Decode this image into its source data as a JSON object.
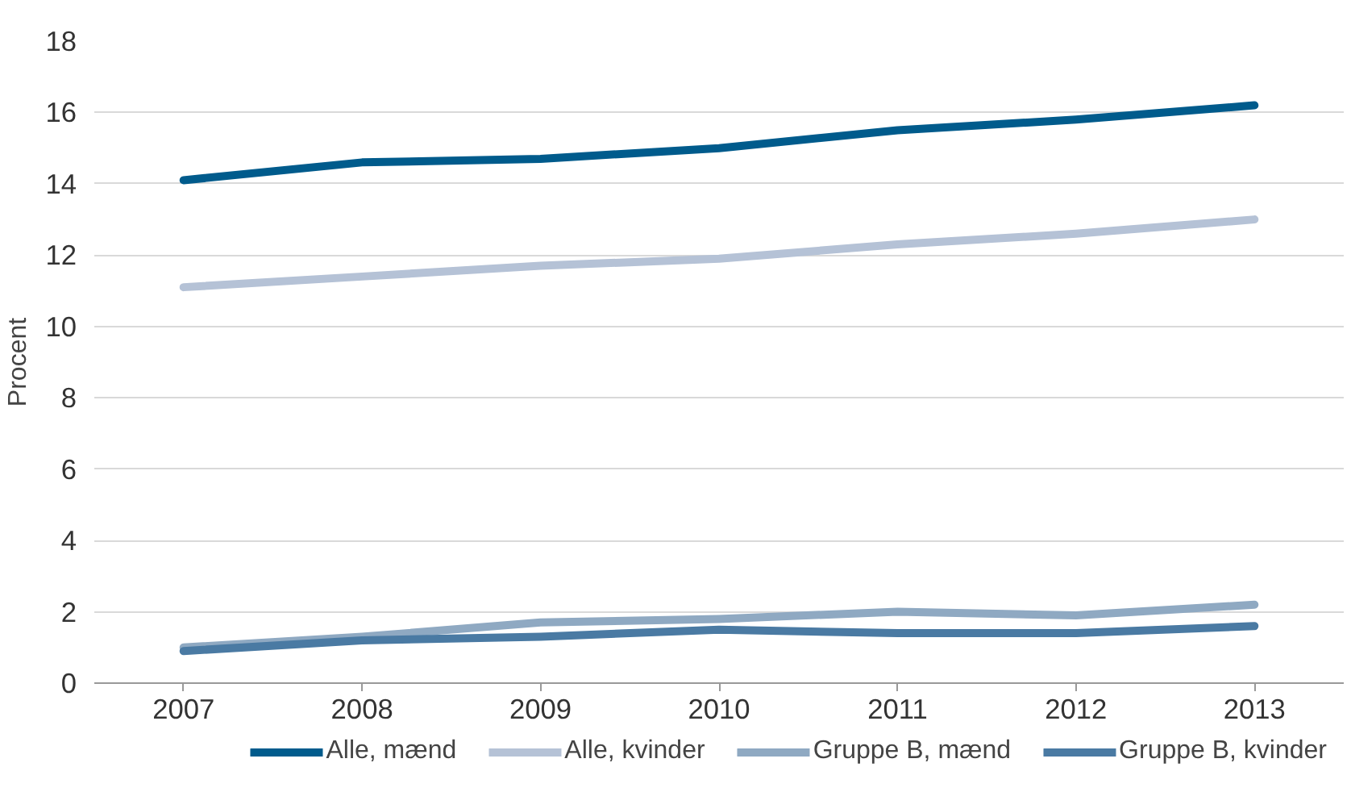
{
  "chart_data": {
    "type": "line",
    "ylabel": "Procent",
    "categories": [
      "2007",
      "2008",
      "2009",
      "2010",
      "2011",
      "2012",
      "2013"
    ],
    "series": [
      {
        "name": "Alle, mænd",
        "color": "#005b8c",
        "values": [
          14.1,
          14.6,
          14.7,
          15.0,
          15.5,
          15.8,
          16.2
        ]
      },
      {
        "name": "Alle, kvinder",
        "color": "#b5c2d6",
        "values": [
          11.1,
          11.4,
          11.7,
          11.9,
          12.3,
          12.6,
          13.0
        ]
      },
      {
        "name": "Gruppe B, mænd",
        "color": "#8fa9c2",
        "values": [
          1.0,
          1.3,
          1.7,
          1.8,
          2.0,
          1.9,
          2.2
        ]
      },
      {
        "name": "Gruppe B, kvinder",
        "color": "#4a7aa3",
        "values": [
          0.9,
          1.2,
          1.3,
          1.5,
          1.4,
          1.4,
          1.6
        ]
      }
    ],
    "ylim": [
      0,
      18
    ],
    "yticks": [
      0,
      2,
      4,
      6,
      8,
      10,
      12,
      14,
      16,
      18
    ],
    "grid": "y",
    "legend": "bottom",
    "marker": "none",
    "line_style": "solid"
  }
}
